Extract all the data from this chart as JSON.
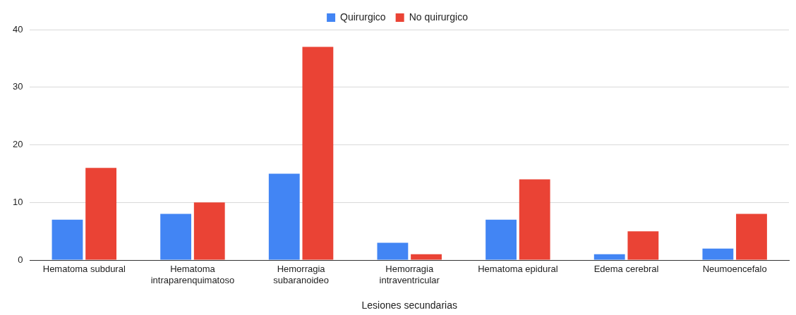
{
  "chart_data": {
    "type": "bar",
    "xlabel": "Lesiones secundarias",
    "categories": [
      "Hematoma subdural",
      "Hematoma intraparenquimatoso",
      "Hemorragia subaranoideo",
      "Hemorragia intraventricular",
      "Hematoma epidural",
      "Edema cerebral",
      "Neumoencefalo"
    ],
    "series": [
      {
        "name": "Quirurgico",
        "color": "#4285f4",
        "values": [
          7,
          8,
          15,
          3,
          7,
          1,
          2
        ]
      },
      {
        "name": "No quirurgico",
        "color": "#ea4335",
        "values": [
          16,
          10,
          37,
          1,
          14,
          5,
          8
        ]
      }
    ],
    "ylim": [
      0,
      40
    ],
    "yticks": [
      0,
      10,
      20,
      30,
      40
    ],
    "grid": "y",
    "legend": "top"
  }
}
